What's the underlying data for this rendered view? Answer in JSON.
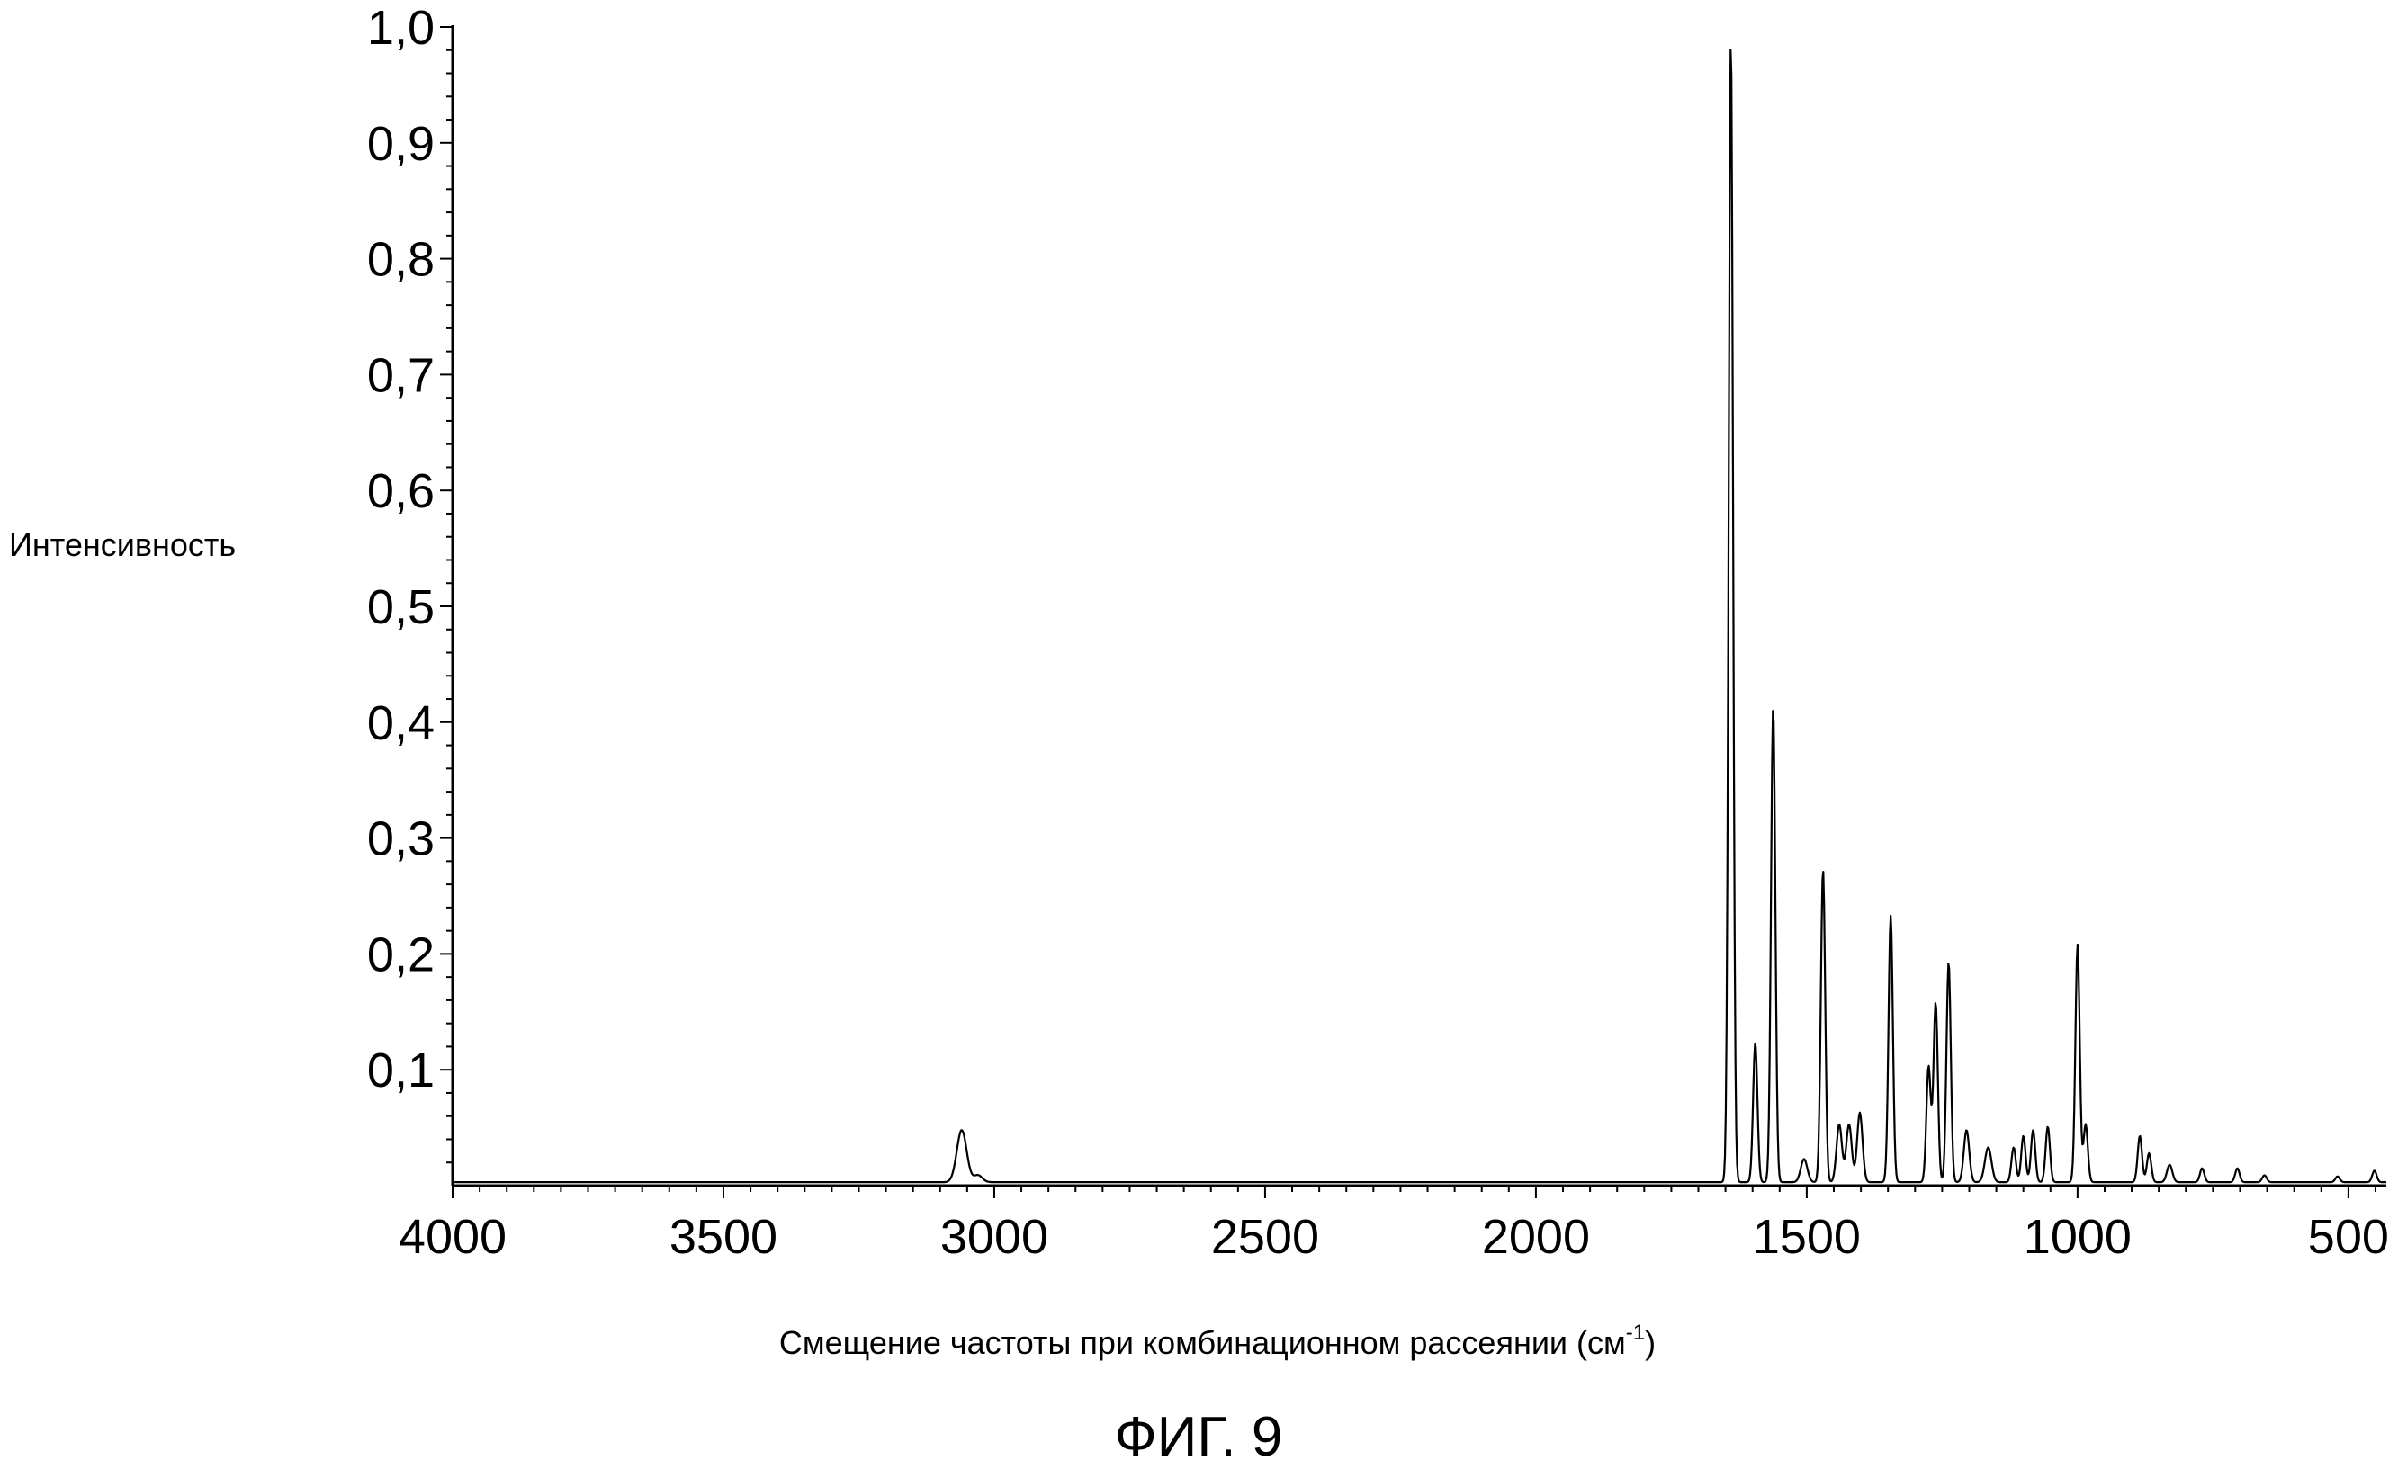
{
  "chart_data": {
    "type": "line",
    "title": "",
    "xlabel": "Смещение частоты при комбинационном рассеянии (см",
    "xlabel_superscript": "-1",
    "xlabel_suffix": ")",
    "ylabel": "Интенсивность",
    "caption": "ФИГ. 9",
    "xlim": [
      4000,
      430
    ],
    "ylim": [
      0,
      1.0
    ],
    "x_ticks": [
      4000,
      3500,
      3000,
      2500,
      2000,
      1500,
      1000,
      500
    ],
    "x_tick_labels": [
      "4000",
      "3500",
      "3000",
      "2500",
      "2000",
      "1500",
      "1000",
      "500"
    ],
    "y_ticks": [
      0.1,
      0.2,
      0.3,
      0.4,
      0.5,
      0.6,
      0.7,
      0.8,
      0.9,
      1.0
    ],
    "y_tick_labels": [
      "0,1",
      "0,2",
      "0,3",
      "0,4",
      "0,5",
      "0,6",
      "0,7",
      "0,8",
      "0,9",
      "1,0"
    ],
    "grid": false,
    "legend": "none",
    "baseline": 0.003,
    "peaks": [
      {
        "x": 3060,
        "y": 0.045,
        "w": 9
      },
      {
        "x": 3030,
        "y": 0.006,
        "w": 8
      },
      {
        "x": 1640,
        "y": 0.985,
        "w": 4
      },
      {
        "x": 1595,
        "y": 0.12,
        "w": 4
      },
      {
        "x": 1562,
        "y": 0.41,
        "w": 4
      },
      {
        "x": 1505,
        "y": 0.02,
        "w": 6
      },
      {
        "x": 1470,
        "y": 0.27,
        "w": 4
      },
      {
        "x": 1440,
        "y": 0.05,
        "w": 5
      },
      {
        "x": 1422,
        "y": 0.05,
        "w": 5
      },
      {
        "x": 1402,
        "y": 0.06,
        "w": 5
      },
      {
        "x": 1345,
        "y": 0.23,
        "w": 4
      },
      {
        "x": 1275,
        "y": 0.1,
        "w": 4
      },
      {
        "x": 1262,
        "y": 0.155,
        "w": 4
      },
      {
        "x": 1238,
        "y": 0.19,
        "w": 4
      },
      {
        "x": 1205,
        "y": 0.045,
        "w": 5
      },
      {
        "x": 1165,
        "y": 0.03,
        "w": 6
      },
      {
        "x": 1118,
        "y": 0.03,
        "w": 4
      },
      {
        "x": 1100,
        "y": 0.04,
        "w": 4
      },
      {
        "x": 1082,
        "y": 0.045,
        "w": 4
      },
      {
        "x": 1055,
        "y": 0.048,
        "w": 4
      },
      {
        "x": 1000,
        "y": 0.205,
        "w": 4
      },
      {
        "x": 985,
        "y": 0.05,
        "w": 4
      },
      {
        "x": 885,
        "y": 0.04,
        "w": 4
      },
      {
        "x": 868,
        "y": 0.025,
        "w": 4
      },
      {
        "x": 830,
        "y": 0.015,
        "w": 5
      },
      {
        "x": 770,
        "y": 0.012,
        "w": 4
      },
      {
        "x": 705,
        "y": 0.012,
        "w": 4
      },
      {
        "x": 655,
        "y": 0.006,
        "w": 4
      },
      {
        "x": 520,
        "y": 0.005,
        "w": 4
      },
      {
        "x": 452,
        "y": 0.01,
        "w": 4
      }
    ]
  }
}
